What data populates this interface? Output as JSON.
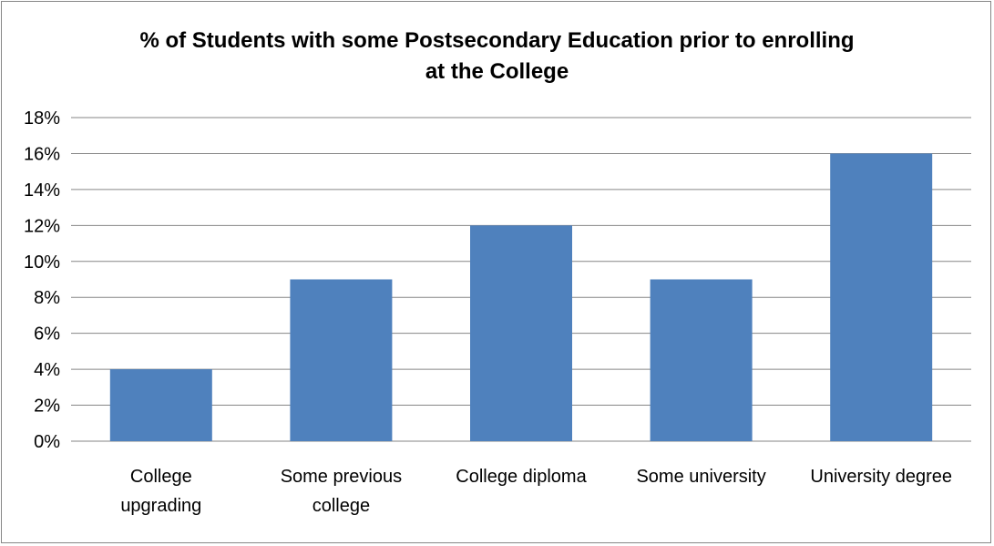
{
  "chart_data": {
    "type": "bar",
    "title": "%  of Students with some Postsecondary Education prior to enrolling\nat the College",
    "categories": [
      "College upgrading",
      "Some previous college",
      "College diploma",
      "Some university",
      "University degree"
    ],
    "category_lines": [
      [
        "College",
        "upgrading"
      ],
      [
        "Some previous",
        "college"
      ],
      [
        "College diploma"
      ],
      [
        "Some university"
      ],
      [
        "University degree"
      ]
    ],
    "series": [
      {
        "values": [
          4,
          9,
          12,
          9,
          16
        ],
        "color": "#4f81bd"
      }
    ],
    "ylim": [
      0,
      18
    ],
    "yticks": [
      0,
      2,
      4,
      6,
      8,
      10,
      12,
      14,
      16,
      18
    ],
    "ytick_labels": [
      "0%",
      "2%",
      "4%",
      "6%",
      "8%",
      "10%",
      "12%",
      "14%",
      "16%",
      "18%"
    ],
    "xlabel": "",
    "ylabel": "",
    "grid": true,
    "legend": "none"
  },
  "colors": {
    "bar": "#4f81bd",
    "grid": "#868686",
    "frame": "#868686"
  }
}
